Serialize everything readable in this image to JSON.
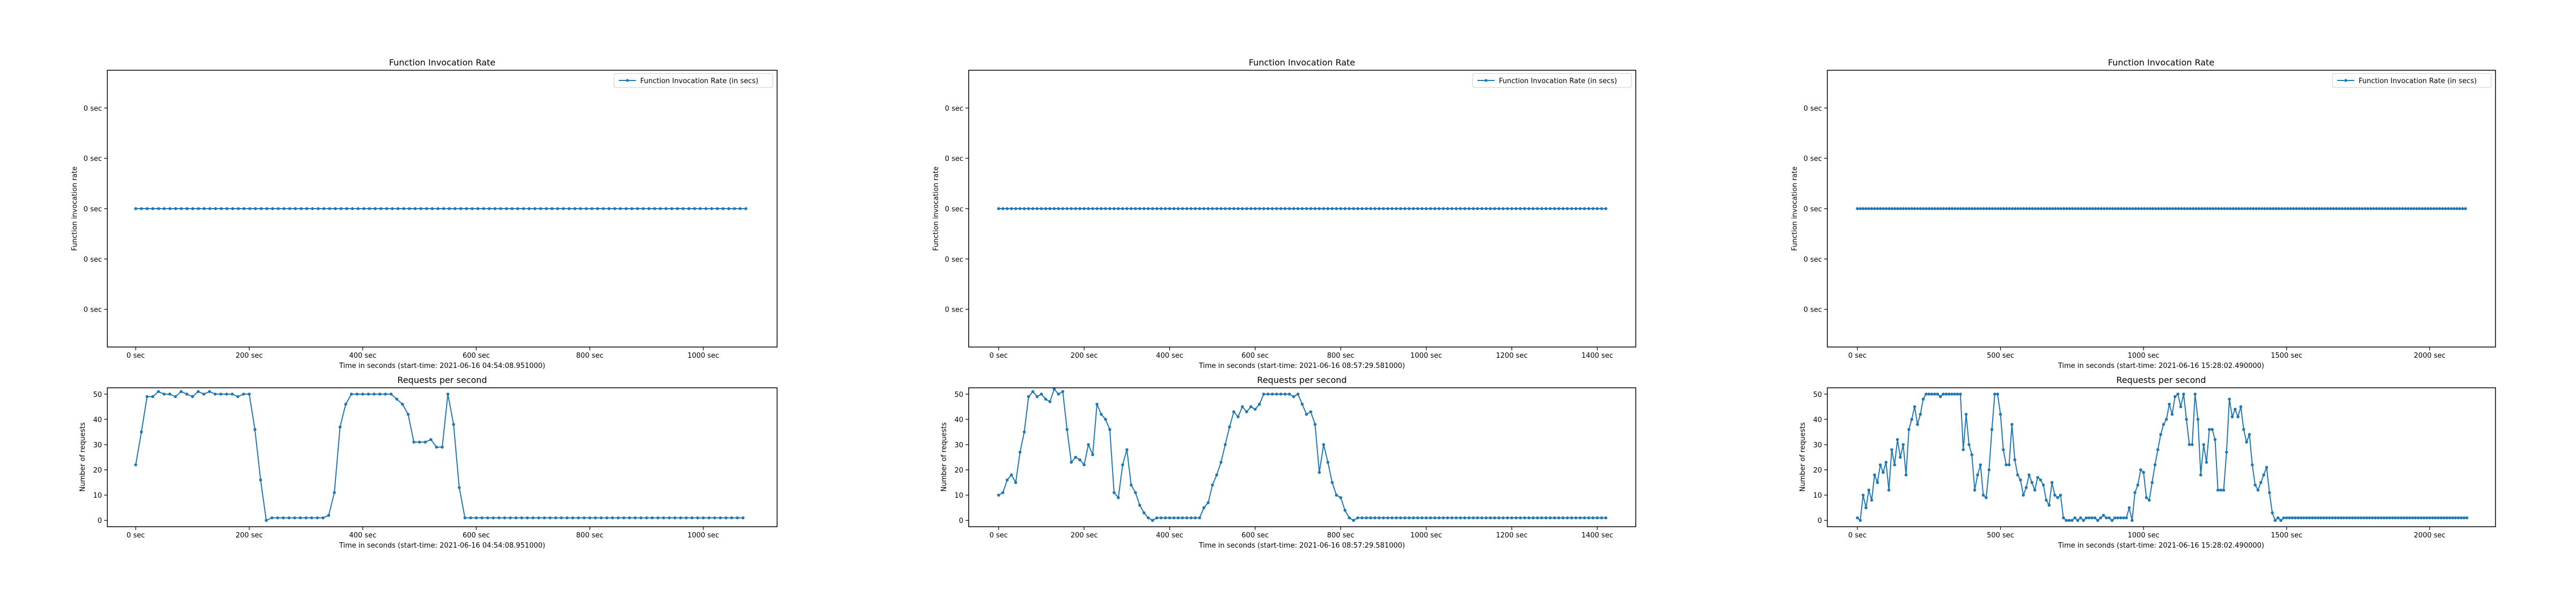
{
  "chart_data": [
    {
      "panel": "run-1-invocation-rate",
      "type": "line",
      "title": "Function Invocation Rate",
      "xlabel": "Time in seconds (start-time: 2021-06-16 04:54:08.951000)",
      "ylabel": "Function invocation rate",
      "legend": "Function Invocation Rate (in secs)",
      "legend_position": "top-right",
      "xlim": [
        -50,
        1130
      ],
      "ylim": [
        -0.055,
        0.055
      ],
      "xticks": [
        0,
        200,
        400,
        600,
        800,
        1000
      ],
      "xtick_labels": [
        "0 sec",
        "200 sec",
        "400 sec",
        "600 sec",
        "800 sec",
        "1000 sec"
      ],
      "yticks": [
        -0.04,
        -0.02,
        0,
        0.02,
        0.04
      ],
      "ytick_labels": [
        "0 sec",
        "0 sec",
        "0 sec",
        "0 sec",
        "0 sec"
      ],
      "x_range": [
        0,
        1075
      ],
      "n_points": 108,
      "constant_value": 0,
      "color": "#1f77b4"
    },
    {
      "panel": "run-2-invocation-rate",
      "type": "line",
      "title": "Function Invocation Rate",
      "xlabel": "Time in seconds (start-time: 2021-06-16 08:57:29.581000)",
      "ylabel": "Function invocation rate",
      "legend": "Function Invocation Rate (in secs)",
      "legend_position": "top-right",
      "xlim": [
        -70,
        1490
      ],
      "ylim": [
        -0.055,
        0.055
      ],
      "xticks": [
        0,
        200,
        400,
        600,
        800,
        1000,
        1200,
        1400
      ],
      "xtick_labels": [
        "0 sec",
        "200 sec",
        "400 sec",
        "600 sec",
        "800 sec",
        "1000 sec",
        "1200 sec",
        "1400 sec"
      ],
      "yticks": [
        -0.04,
        -0.02,
        0,
        0.02,
        0.04
      ],
      "ytick_labels": [
        "0 sec",
        "0 sec",
        "0 sec",
        "0 sec",
        "0 sec"
      ],
      "x_range": [
        0,
        1420
      ],
      "n_points": 143,
      "constant_value": 0,
      "color": "#1f77b4"
    },
    {
      "panel": "run-3-invocation-rate",
      "type": "line",
      "title": "Function Invocation Rate",
      "xlabel": "Time in seconds (start-time: 2021-06-16 15:28:02.490000)",
      "ylabel": "Function invocation rate",
      "legend": "Function Invocation Rate (in secs)",
      "legend_position": "top-right",
      "xlim": [
        -105,
        2230
      ],
      "ylim": [
        -0.055,
        0.055
      ],
      "xticks": [
        0,
        500,
        1000,
        1500,
        2000
      ],
      "xtick_labels": [
        "0 sec",
        "500 sec",
        "1000 sec",
        "1500 sec",
        "2000 sec"
      ],
      "yticks": [
        -0.04,
        -0.02,
        0,
        0.02,
        0.04
      ],
      "ytick_labels": [
        "0 sec",
        "0 sec",
        "0 sec",
        "0 sec",
        "0 sec"
      ],
      "x_range": [
        0,
        2125
      ],
      "n_points": 213,
      "constant_value": 0,
      "color": "#1f77b4"
    },
    {
      "panel": "run-1-requests",
      "type": "line",
      "title": "Requests per second",
      "xlabel": "Time in seconds (start-time: 2021-06-16 04:54:08.951000)",
      "ylabel": "Number of requests",
      "xlim": [
        -50,
        1130
      ],
      "ylim": [
        -2.5,
        52.5
      ],
      "xticks": [
        0,
        200,
        400,
        600,
        800,
        1000
      ],
      "xtick_labels": [
        "0 sec",
        "200 sec",
        "400 sec",
        "600 sec",
        "800 sec",
        "1000 sec"
      ],
      "yticks": [
        0,
        10,
        20,
        30,
        40,
        50
      ],
      "ytick_labels": [
        "0",
        "10",
        "20",
        "30",
        "40",
        "50"
      ],
      "x_step": 10,
      "x_start": 0,
      "color": "#1f77b4",
      "values": [
        22,
        35,
        49,
        49,
        51,
        50,
        50,
        49,
        51,
        50,
        49,
        51,
        50,
        51,
        50,
        50,
        50,
        50,
        49,
        50,
        50,
        36,
        16,
        0,
        1,
        1,
        1,
        1,
        1,
        1,
        1,
        1,
        1,
        1,
        2,
        11,
        37,
        46,
        50,
        50,
        50,
        50,
        50,
        50,
        50,
        50,
        48,
        46,
        42,
        31,
        31,
        31,
        32,
        29,
        29,
        50,
        38,
        13,
        1,
        1,
        1,
        1,
        1,
        1,
        1,
        1,
        1,
        1,
        1,
        1,
        1,
        1,
        1,
        1,
        1,
        1,
        1,
        1,
        1,
        1,
        1,
        1,
        1,
        1,
        1,
        1,
        1,
        1,
        1,
        1,
        1,
        1,
        1,
        1,
        1,
        1,
        1,
        1,
        1,
        1,
        1,
        1,
        1,
        1,
        1,
        1,
        1,
        1
      ]
    },
    {
      "panel": "run-2-requests",
      "type": "line",
      "title": "Requests per second",
      "xlabel": "Time in seconds (start-time: 2021-06-16 08:57:29.581000)",
      "ylabel": "Number of requests",
      "xlim": [
        -70,
        1490
      ],
      "ylim": [
        -2.5,
        52.5
      ],
      "xticks": [
        0,
        200,
        400,
        600,
        800,
        1000,
        1200,
        1400
      ],
      "xtick_labels": [
        "0 sec",
        "200 sec",
        "400 sec",
        "600 sec",
        "800 sec",
        "1000 sec",
        "1200 sec",
        "1400 sec"
      ],
      "yticks": [
        0,
        10,
        20,
        30,
        40,
        50
      ],
      "ytick_labels": [
        "0",
        "10",
        "20",
        "30",
        "40",
        "50"
      ],
      "x_step": 10,
      "x_start": 0,
      "color": "#1f77b4",
      "values": [
        10,
        11,
        16,
        18,
        15,
        27,
        35,
        49,
        51,
        49,
        50,
        48,
        47,
        52,
        50,
        51,
        36,
        23,
        25,
        24,
        22,
        30,
        26,
        46,
        42,
        40,
        36,
        11,
        9,
        22,
        28,
        14,
        11,
        6,
        3,
        1,
        0,
        1,
        1,
        1,
        1,
        1,
        1,
        1,
        1,
        1,
        1,
        1,
        5,
        7,
        14,
        18,
        23,
        30,
        37,
        43,
        41,
        45,
        43,
        45,
        44,
        46,
        50,
        50,
        50,
        50,
        50,
        50,
        50,
        49,
        50,
        46,
        42,
        43,
        38,
        19,
        30,
        23,
        15,
        10,
        9,
        4,
        1,
        0,
        1,
        1,
        1,
        1,
        1,
        1,
        1,
        1,
        1,
        1,
        1,
        1,
        1,
        1,
        1,
        1,
        1,
        1,
        1,
        1,
        1,
        1,
        1,
        1,
        1,
        1,
        1,
        1,
        1,
        1,
        1,
        1,
        1,
        1,
        1,
        1,
        1,
        1,
        1,
        1,
        1,
        1,
        1,
        1,
        1,
        1,
        1,
        1,
        1,
        1,
        1,
        1,
        1,
        1,
        1,
        1,
        1,
        1,
        1
      ]
    },
    {
      "panel": "run-3-requests",
      "type": "line",
      "title": "Requests per second",
      "xlabel": "Time in seconds (start-time: 2021-06-16 15:28:02.490000)",
      "ylabel": "Number of requests",
      "xlim": [
        -105,
        2230
      ],
      "ylim": [
        -2.5,
        52.5
      ],
      "xticks": [
        0,
        500,
        1000,
        1500,
        2000
      ],
      "xtick_labels": [
        "0 sec",
        "500 sec",
        "1000 sec",
        "1500 sec",
        "2000 sec"
      ],
      "yticks": [
        0,
        10,
        20,
        30,
        40,
        50
      ],
      "ytick_labels": [
        "0",
        "10",
        "20",
        "30",
        "40",
        "50"
      ],
      "x_step": 10,
      "x_start": 0,
      "color": "#1f77b4",
      "values": [
        1,
        0,
        10,
        5,
        12,
        8,
        18,
        15,
        22,
        19,
        23,
        12,
        28,
        22,
        32,
        25,
        30,
        18,
        36,
        40,
        45,
        38,
        42,
        48,
        50,
        50,
        50,
        50,
        50,
        49,
        50,
        50,
        50,
        50,
        50,
        50,
        50,
        28,
        42,
        30,
        26,
        12,
        18,
        22,
        10,
        9,
        20,
        36,
        50,
        50,
        42,
        28,
        22,
        22,
        38,
        24,
        18,
        16,
        10,
        13,
        18,
        15,
        12,
        17,
        16,
        14,
        8,
        6,
        15,
        10,
        9,
        10,
        1,
        0,
        0,
        0,
        1,
        0,
        1,
        0,
        1,
        1,
        1,
        1,
        0,
        1,
        2,
        1,
        1,
        0,
        1,
        1,
        1,
        1,
        1,
        5,
        0,
        11,
        14,
        20,
        19,
        9,
        8,
        15,
        22,
        28,
        34,
        38,
        40,
        46,
        42,
        49,
        50,
        45,
        50,
        40,
        30,
        30,
        50,
        40,
        18,
        30,
        23,
        36,
        36,
        32,
        12,
        12,
        12,
        27,
        48,
        41,
        44,
        41,
        45,
        36,
        31,
        34,
        22,
        14,
        12,
        15,
        18,
        21,
        11,
        3,
        0,
        1,
        0,
        1,
        1,
        1,
        1,
        1,
        1,
        1,
        1,
        1,
        1,
        1,
        1,
        1,
        1,
        1,
        1,
        1,
        1,
        1,
        1,
        1,
        1,
        1,
        1,
        1,
        1,
        1,
        1,
        1,
        1,
        1,
        1,
        1,
        1,
        1,
        1,
        1,
        1,
        1,
        1,
        1,
        1,
        1,
        1,
        1,
        1,
        1,
        1,
        1,
        1,
        1,
        1,
        1,
        1,
        1,
        1,
        1,
        1,
        1,
        1,
        1,
        1,
        1,
        1,
        1
      ]
    }
  ]
}
